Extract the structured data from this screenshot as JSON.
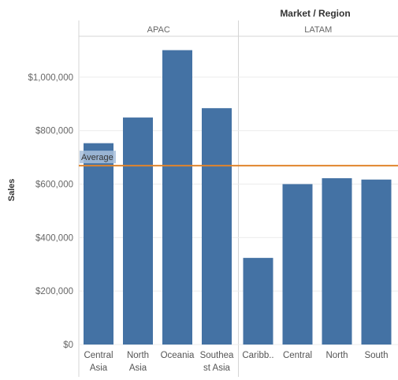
{
  "chart_data": {
    "type": "bar",
    "header_title": "Market / Region",
    "ylabel": "Sales",
    "ylim": [
      0,
      1150000
    ],
    "y_ticks": [
      {
        "value": 0,
        "label": "$0"
      },
      {
        "value": 200000,
        "label": "$200,000"
      },
      {
        "value": 400000,
        "label": "$400,000"
      },
      {
        "value": 600000,
        "label": "$600,000"
      },
      {
        "value": 800000,
        "label": "$800,000"
      },
      {
        "value": 1000000,
        "label": "$1,000,000"
      }
    ],
    "grid": true,
    "panes": [
      {
        "name": "APAC",
        "categories": [
          {
            "name": "Central Asia",
            "lines": [
              "Central",
              "Asia"
            ],
            "value": 753000
          },
          {
            "name": "North Asia",
            "lines": [
              "North",
              "Asia"
            ],
            "value": 849000
          },
          {
            "name": "Oceania",
            "lines": [
              "Oceania"
            ],
            "value": 1101000
          },
          {
            "name": "Southeast Asia",
            "lines": [
              "Southea",
              "st Asia"
            ],
            "value": 884000
          }
        ]
      },
      {
        "name": "LATAM",
        "categories": [
          {
            "name": "Caribbean",
            "lines": [
              "Caribb.."
            ],
            "value": 324000
          },
          {
            "name": "Central",
            "lines": [
              "Central"
            ],
            "value": 600000
          },
          {
            "name": "North",
            "lines": [
              "North"
            ],
            "value": 622000
          },
          {
            "name": "South",
            "lines": [
              "South"
            ],
            "value": 617000
          }
        ]
      }
    ],
    "reference_line": {
      "label": "Average",
      "value": 669000
    },
    "colors": {
      "bar": "#4472a4",
      "average_line": "#e0842c",
      "average_band": "#a8c0dc"
    }
  }
}
